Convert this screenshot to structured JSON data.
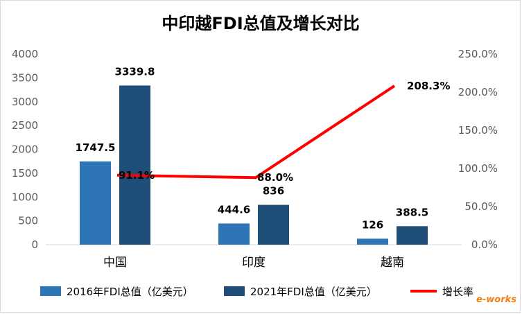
{
  "chart_data": {
    "type": "bar",
    "title": "中印越FDI总值及增长对比",
    "categories": [
      "中国",
      "印度",
      "越南"
    ],
    "series": [
      {
        "name": "2016年FDI总值（亿美元）",
        "type": "bar",
        "axis": "left",
        "color": "#2e75b6",
        "values": [
          1747.5,
          444.6,
          126
        ],
        "labels": [
          "1747.5",
          "444.6",
          "126"
        ]
      },
      {
        "name": "2021年FDI总值（亿美元）",
        "type": "bar",
        "axis": "left",
        "color": "#1f4e79",
        "values": [
          3339.8,
          836,
          388.5
        ],
        "labels": [
          "3339.8",
          "836",
          "388.5"
        ]
      },
      {
        "name": "增长率",
        "type": "line",
        "axis": "right",
        "color": "#ff0000",
        "values": [
          91.1,
          88.0,
          208.3
        ],
        "labels": [
          "91.1%",
          "88.0%",
          "208.3%"
        ]
      }
    ],
    "y_left": {
      "min": 0,
      "max": 4000,
      "step": 500,
      "ticks": [
        "0",
        "500",
        "1000",
        "1500",
        "2000",
        "2500",
        "3000",
        "3500",
        "4000"
      ]
    },
    "y_right": {
      "min": 0,
      "max": 250,
      "step": 50,
      "ticks": [
        "0.0%",
        "50.0%",
        "100.0%",
        "150.0%",
        "200.0%",
        "250.0%"
      ]
    },
    "grid": false,
    "legend": "bottom"
  },
  "watermark": "e-works"
}
